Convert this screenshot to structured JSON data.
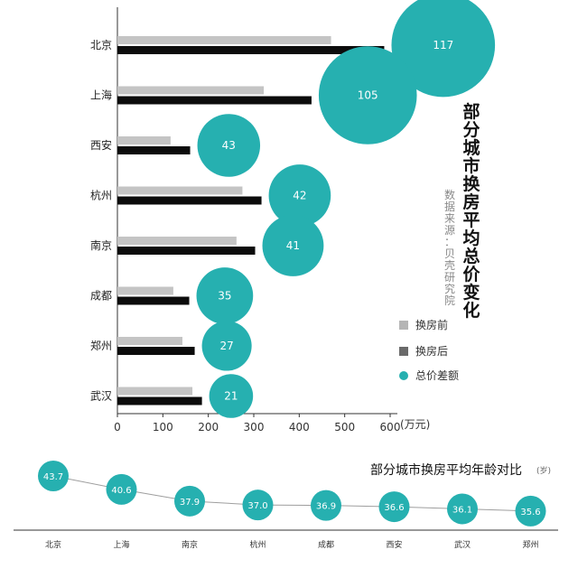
{
  "chart_data": [
    {
      "type": "bar",
      "title": "部分城市换房平均总价变化",
      "source": "数据来源：贝壳研究院",
      "unit": "(万元)",
      "categories": [
        "北京",
        "上海",
        "西安",
        "杭州",
        "南京",
        "成都",
        "郑州",
        "武汉"
      ],
      "series": [
        {
          "name": "换房前",
          "values": [
            470,
            322,
            117,
            275,
            262,
            123,
            143,
            165
          ],
          "color": "#c4c4c4"
        },
        {
          "name": "换房后",
          "values": [
            587,
            427,
            160,
            317,
            303,
            158,
            170,
            186
          ],
          "color": "#0c0c0c"
        },
        {
          "name": "总价差额",
          "values": [
            117,
            105,
            43,
            42,
            41,
            35,
            27,
            21
          ],
          "color": "#26b0b0"
        }
      ],
      "xlim": [
        0,
        600
      ],
      "xticks": [
        0,
        100,
        200,
        300,
        400,
        500,
        600
      ]
    },
    {
      "type": "line",
      "title": "部分城市换房平均年龄对比",
      "unit": "(岁)",
      "categories": [
        "北京",
        "上海",
        "南京",
        "杭州",
        "成都",
        "西安",
        "武汉",
        "郑州"
      ],
      "values": [
        43.7,
        40.6,
        37.9,
        37.0,
        36.9,
        36.6,
        36.1,
        35.6
      ],
      "color": "#26b0b0"
    }
  ]
}
